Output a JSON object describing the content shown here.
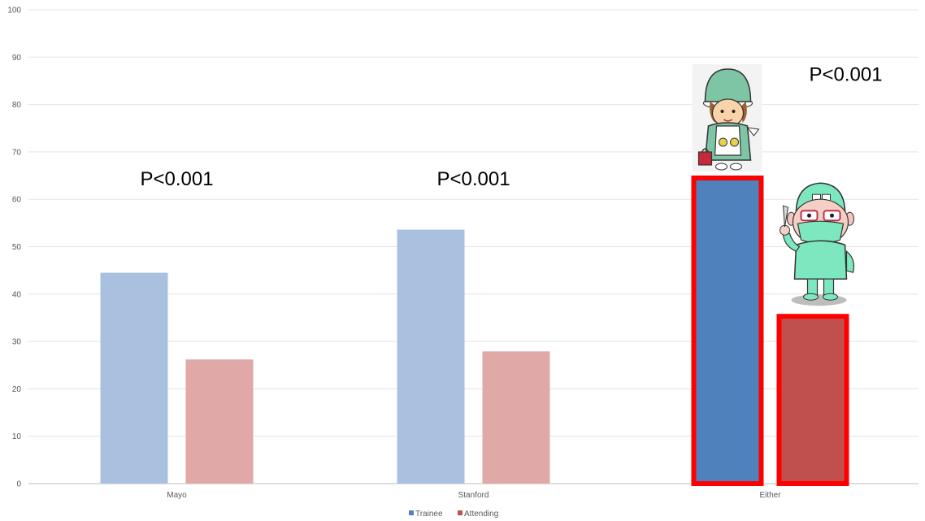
{
  "chart_data": {
    "type": "bar",
    "categories": [
      "Mayo",
      "Stanford",
      "Either"
    ],
    "series": [
      {
        "name": "Trainee",
        "values": [
          44.5,
          53.6,
          64.5
        ],
        "color": "#4f81bd",
        "faded_color": "#a9c1df"
      },
      {
        "name": "Attending",
        "values": [
          26.2,
          27.9,
          35.3
        ],
        "color": "#c0504d",
        "faded_color": "#e0a8a7"
      }
    ],
    "highlighted_category": "Either",
    "highlight_color": "#ff0000",
    "ylim": [
      0,
      100
    ],
    "yticks": [
      0,
      10,
      20,
      30,
      40,
      50,
      60,
      70,
      80,
      90,
      100
    ],
    "grid": true,
    "legend_position": "bottom",
    "annotations": [
      {
        "category": "Mayo",
        "text": "P<0.001",
        "y": 64.5
      },
      {
        "category": "Stanford",
        "text": "P<0.001",
        "y": 64.5
      },
      {
        "category": "Either",
        "text": "P<0.001",
        "y": 86.5
      }
    ],
    "illustrations": [
      {
        "category": "Either",
        "series": "Trainee",
        "icon": "trainee-surgeon-illustration"
      },
      {
        "category": "Either",
        "series": "Attending",
        "icon": "attending-surgeon-illustration"
      }
    ]
  }
}
